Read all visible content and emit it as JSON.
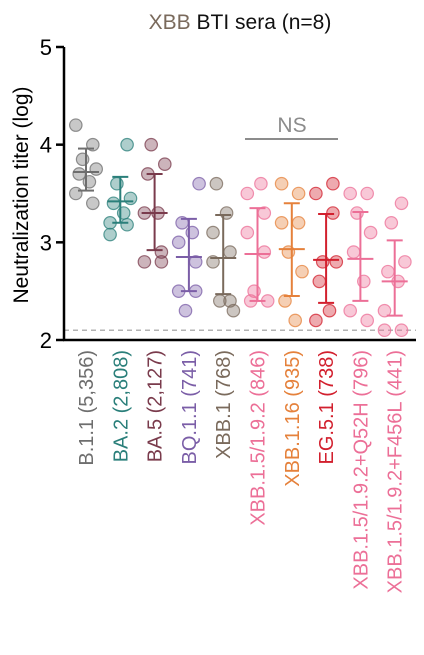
{
  "title": {
    "prefix": "XBB",
    "rest": " BTI sera (n=8)"
  },
  "chart_data": {
    "type": "scatter",
    "ylabel": "Neutralization titer (log)",
    "ylim": [
      2,
      5
    ],
    "yticks": [
      "2",
      "3",
      "4",
      "5"
    ],
    "detection_limit": 2.1,
    "annotation": "NS",
    "categories": [
      {
        "label": "B.1.1",
        "count": "(5,356)",
        "color": "#6e6e6e",
        "gmt": 3.72,
        "err_low": 3.53,
        "err_high": 3.96,
        "values": [
          4.2,
          4.0,
          3.85,
          3.75,
          3.7,
          3.62,
          3.5,
          3.4
        ]
      },
      {
        "label": "BA.2",
        "count": "(2,808)",
        "color": "#2a7f7a",
        "gmt": 3.42,
        "err_low": 3.2,
        "err_high": 3.67,
        "values": [
          4.0,
          3.6,
          3.45,
          3.4,
          3.3,
          3.2,
          3.18,
          3.08
        ]
      },
      {
        "label": "BA.5",
        "count": "(2,127)",
        "color": "#7a3b4c",
        "gmt": 3.3,
        "err_low": 2.92,
        "err_high": 3.7,
        "values": [
          4.0,
          3.8,
          3.7,
          3.3,
          3.3,
          2.9,
          2.8,
          2.8
        ]
      },
      {
        "label": "BQ.1.1",
        "count": "(741)",
        "color": "#7b5ea7",
        "gmt": 2.85,
        "err_low": 2.5,
        "err_high": 3.24,
        "values": [
          3.6,
          3.2,
          3.1,
          3.0,
          2.8,
          2.5,
          2.5,
          2.3
        ]
      },
      {
        "label": "XBB.1",
        "count": "(768)",
        "color": "#7a6a5c",
        "gmt": 2.84,
        "err_low": 2.47,
        "err_high": 3.28,
        "values": [
          3.6,
          3.3,
          3.1,
          2.9,
          2.8,
          2.4,
          2.4,
          2.3
        ]
      },
      {
        "label": "XBB.1.5/1.9.2",
        "count": "(846)",
        "color": "#ec6f97",
        "gmt": 2.88,
        "err_low": 2.4,
        "err_high": 3.35,
        "values": [
          3.6,
          3.5,
          3.3,
          3.1,
          2.9,
          2.5,
          2.4,
          2.4
        ]
      },
      {
        "label": "XBB.1.16",
        "count": "(935)",
        "color": "#e5813b",
        "gmt": 2.93,
        "err_low": 2.45,
        "err_high": 3.4,
        "values": [
          3.6,
          3.5,
          3.2,
          3.2,
          2.9,
          2.7,
          2.4,
          2.2
        ]
      },
      {
        "label": "EG.5.1",
        "count": "(738)",
        "color": "#d2202e",
        "gmt": 2.82,
        "err_low": 2.38,
        "err_high": 3.29,
        "values": [
          3.6,
          3.5,
          3.3,
          2.8,
          2.8,
          2.6,
          2.3,
          2.2
        ]
      },
      {
        "label": "XBB.1.5/1.9.2+Q52H",
        "count": "(796)",
        "color": "#ec6f97",
        "gmt": 2.83,
        "err_low": 2.4,
        "err_high": 3.31,
        "values": [
          3.5,
          3.5,
          3.3,
          3.1,
          2.9,
          2.6,
          2.3,
          2.2
        ]
      },
      {
        "label": "XBB.1.5/1.9.2+F456L",
        "count": "(441)",
        "color": "#ec6f97",
        "gmt": 2.6,
        "err_low": 2.25,
        "err_high": 3.02,
        "values": [
          3.4,
          3.2,
          2.8,
          2.7,
          2.6,
          2.3,
          2.1,
          2.1
        ]
      }
    ]
  }
}
